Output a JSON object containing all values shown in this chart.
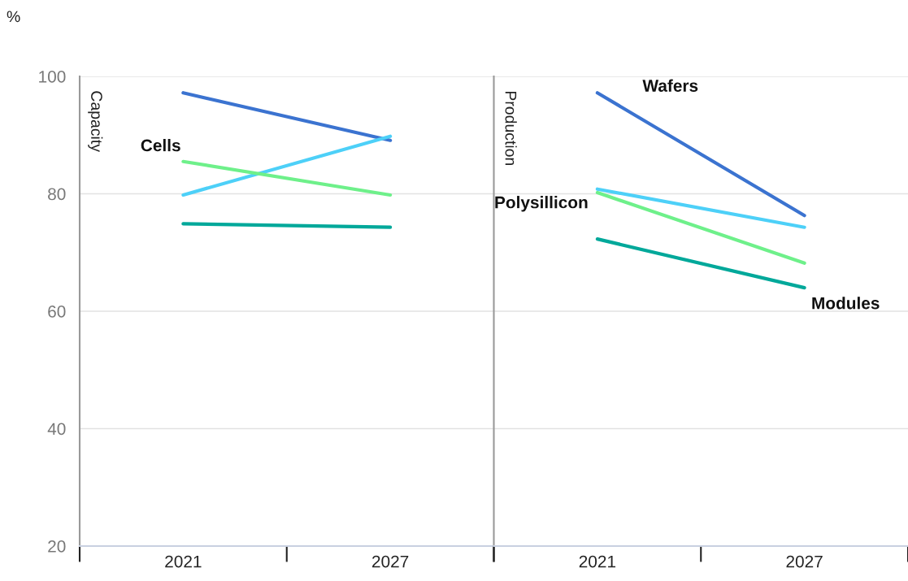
{
  "chart_data": [
    {
      "type": "line",
      "title": "Capacity",
      "ylabel": "%",
      "categories": [
        "2021",
        "2027"
      ],
      "ylim": [
        20,
        100
      ],
      "yticks": [
        20,
        40,
        60,
        80,
        100
      ],
      "grid": "y",
      "marker": "none",
      "line_style": "solid",
      "series": [
        {
          "color": "#3b73d0",
          "values": [
            97.2,
            89.1
          ]
        },
        {
          "color": "#4dd0f8",
          "values": [
            79.8,
            89.8
          ]
        },
        {
          "name": "Cells",
          "color": "#6ef08a",
          "values": [
            85.5,
            79.8
          ]
        },
        {
          "color": "#00a89a",
          "values": [
            74.9,
            74.3
          ]
        }
      ]
    },
    {
      "type": "line",
      "title": "Production",
      "categories": [
        "2021",
        "2027"
      ],
      "ylim": [
        20,
        100
      ],
      "yticks": [
        20,
        40,
        60,
        80,
        100
      ],
      "grid": "y",
      "marker": "none",
      "line_style": "solid",
      "tick_labels": "x",
      "series": [
        {
          "name": "Wafers",
          "color": "#3b73d0",
          "values": [
            97.2,
            76.3
          ]
        },
        {
          "name": "Polysillicon",
          "color": "#4dd0f8",
          "values": [
            80.8,
            74.3
          ]
        },
        {
          "color": "#6ef08a",
          "values": [
            80.2,
            68.2
          ]
        },
        {
          "name": "Modules",
          "color": "#00a89a",
          "values": [
            72.3,
            64.0
          ]
        }
      ]
    }
  ]
}
